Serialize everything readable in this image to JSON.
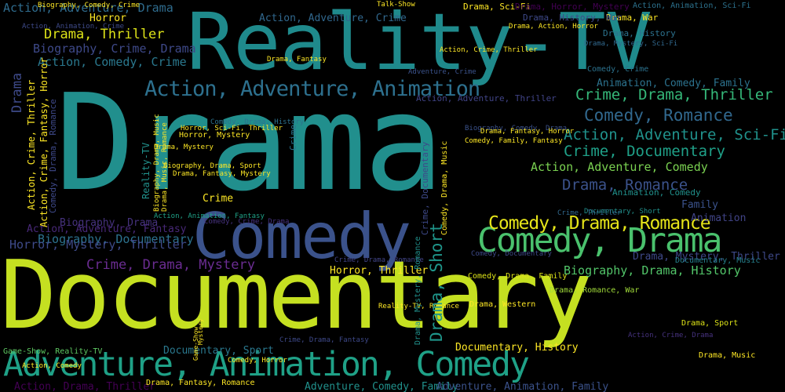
{
  "words": [
    {
      "text": "Reality-TV",
      "color": "#1f8a8c",
      "rotate": false
    },
    {
      "text": "Drama",
      "color": "#218f8d",
      "rotate": false
    },
    {
      "text": "Documentary",
      "color": "#c5e021",
      "rotate": false
    },
    {
      "text": "Comedy",
      "color": "#3b528b",
      "rotate": false
    },
    {
      "text": "Adventure, Animation, Comedy",
      "color": "#1fa187",
      "rotate": false
    },
    {
      "text": "Comedy, Drama",
      "color": "#4ac16d",
      "rotate": false
    },
    {
      "text": "Action, Adventure, Animation",
      "color": "#2d708e",
      "rotate": false
    },
    {
      "text": "Comedy, Drama, Romance",
      "color": "#e5e419",
      "rotate": false
    },
    {
      "text": "Action, Adventure, Drama",
      "color": "#2f6c8e",
      "rotate": false
    },
    {
      "text": "Drama, Thriller",
      "color": "#dde318",
      "rotate": false
    },
    {
      "text": "Biography, Crime, Drama",
      "color": "#3e4989",
      "rotate": false
    },
    {
      "text": "Action, Comedy, Crime",
      "color": "#2a788e",
      "rotate": false
    },
    {
      "text": "Crime, Drama, Thriller",
      "color": "#35b779",
      "rotate": false
    },
    {
      "text": "Comedy, Romance",
      "color": "#31688e",
      "rotate": false
    },
    {
      "text": "Action, Adventure, Sci-Fi",
      "color": "#20928c",
      "rotate": false
    },
    {
      "text": "Crime, Documentary",
      "color": "#1fa088",
      "rotate": false
    },
    {
      "text": "Action, Adventure, Comedy",
      "color": "#7ad151",
      "rotate": false
    },
    {
      "text": "Drama, Romance",
      "color": "#3b528b",
      "rotate": false
    },
    {
      "text": "Crime, Drama, Mystery",
      "color": "#6a2c91",
      "rotate": false
    },
    {
      "text": "Biography, Drama, History",
      "color": "#52c569",
      "rotate": false
    },
    {
      "text": "Biography, Documentary",
      "color": "#2c728e",
      "rotate": false
    },
    {
      "text": "Horror, Mystery, Thriller",
      "color": "#3e4a89",
      "rotate": false
    },
    {
      "text": "Action, Adventure, Fantasy",
      "color": "#482878",
      "rotate": false
    },
    {
      "text": "Biography, Drama",
      "color": "#46327e",
      "rotate": false
    },
    {
      "text": "Action, Adventure, Crime",
      "color": "#31688e",
      "rotate": false
    },
    {
      "text": "Action, Adventure, Thriller",
      "color": "#414487",
      "rotate": false
    },
    {
      "text": "Animation, Comedy, Family",
      "color": "#2c728e",
      "rotate": false
    },
    {
      "text": "Crime",
      "color": "#fde725",
      "rotate": false
    },
    {
      "text": "Horror",
      "color": "#fde725",
      "rotate": false
    },
    {
      "text": "Documentary, Sport",
      "color": "#2a788e",
      "rotate": false
    },
    {
      "text": "Documentary, History",
      "color": "#fde725",
      "rotate": false
    },
    {
      "text": "Adventure, Comedy, Family",
      "color": "#21918c",
      "rotate": false
    },
    {
      "text": "Action, Drama, Thriller",
      "color": "#440154",
      "rotate": false
    },
    {
      "text": "Drama, Fantasy, Romance",
      "color": "#fde725",
      "rotate": false
    },
    {
      "text": "Adventure, Animation, Family",
      "color": "#3b528b",
      "rotate": false
    },
    {
      "text": "Drama, Mystery, Thriller",
      "color": "#3e4989",
      "rotate": false
    },
    {
      "text": "Horror, Thriller",
      "color": "#fde725",
      "rotate": false
    },
    {
      "text": "Crime, Drama, Romance",
      "color": "#414487",
      "rotate": false
    },
    {
      "text": "Game-Show, Reality-TV",
      "color": "#5ec962",
      "rotate": false
    },
    {
      "text": "Drama, Romance, War",
      "color": "#a0da39",
      "rotate": false
    },
    {
      "text": "Drama, Sport",
      "color": "#dde318",
      "rotate": false
    },
    {
      "text": "Drama, Sci-Fi",
      "color": "#fde725",
      "rotate": false
    },
    {
      "text": "Drama, War",
      "color": "#fde725",
      "rotate": false
    },
    {
      "text": "Drama, History",
      "color": "#2c728e",
      "rotate": false
    },
    {
      "text": "Drama, History, War",
      "color": "#3e4989",
      "rotate": false
    },
    {
      "text": "Drama, Horror, Mystery",
      "color": "#440154",
      "rotate": false
    },
    {
      "text": "Action, Animation, Sci-Fi",
      "color": "#2c728e",
      "rotate": false
    },
    {
      "text": "Comedy, Crime",
      "color": "#2c728e",
      "rotate": false
    },
    {
      "text": "Comedy, Documentary",
      "color": "#3e4a89",
      "rotate": false
    },
    {
      "text": "Comedy, Drama, Family",
      "color": "#dde318",
      "rotate": false
    },
    {
      "text": "Drama, Western",
      "color": "#fde725",
      "rotate": false
    },
    {
      "text": "Animation, Comedy",
      "color": "#21918c",
      "rotate": false
    },
    {
      "text": "Documentary, Music",
      "color": "#26828e",
      "rotate": false
    },
    {
      "text": "Family",
      "color": "#3b528b",
      "rotate": false
    },
    {
      "text": "Animation",
      "color": "#414487",
      "rotate": false
    },
    {
      "text": "Action, Animation, Fantasy",
      "color": "#1fa187",
      "rotate": false
    },
    {
      "text": "Comedy, Crime, Drama",
      "color": "#46327e",
      "rotate": false
    },
    {
      "text": "Action, Crime, Drama",
      "color": "#46327e",
      "rotate": false
    },
    {
      "text": "Action, Comedy",
      "color": "#fde725",
      "rotate": false
    },
    {
      "text": "Horror, Sci-Fi, Thriller",
      "color": "#fde725",
      "rotate": false
    },
    {
      "text": "Reality-TV, Romance",
      "color": "#fde725",
      "rotate": false
    },
    {
      "text": "Crime, Drama, Fantasy",
      "color": "#3e4989",
      "rotate": false
    },
    {
      "text": "Adventure, Crime",
      "color": "#3b528b",
      "rotate": false
    },
    {
      "text": "Talk-Show",
      "color": "#fde725",
      "rotate": false
    },
    {
      "text": "Biography, Comedy, Crime",
      "color": "#fde725",
      "rotate": false
    },
    {
      "text": "Drama, Mystery",
      "color": "#fde725",
      "rotate": false
    },
    {
      "text": "Action, Animation, Crime",
      "color": "#3e4a89",
      "rotate": false
    },
    {
      "text": "Comedy, Drama, History",
      "color": "#2c728e",
      "rotate": false
    },
    {
      "text": "Biography, Comedy, Drama",
      "color": "#3b528b",
      "rotate": false
    },
    {
      "text": "Drama, Fantasy, Horror",
      "color": "#fde725",
      "rotate": false
    },
    {
      "text": "Documentary, Short",
      "color": "#21918c",
      "rotate": false
    },
    {
      "text": "Crime, Thriller",
      "color": "#31688e",
      "rotate": false
    },
    {
      "text": "Horror, Mystery",
      "color": "#fde725",
      "rotate": false
    },
    {
      "text": "Comedy, Family, Fantasy",
      "color": "#fde725",
      "rotate": false
    },
    {
      "text": "Drama, Fantasy",
      "color": "#fde725",
      "rotate": false
    },
    {
      "text": "Drama, Fantasy, Mystery",
      "color": "#fde725",
      "rotate": false
    },
    {
      "text": "Biography, Drama, Sport",
      "color": "#fde725",
      "rotate": false
    },
    {
      "text": "Drama, Music",
      "color": "#fde725",
      "rotate": false
    },
    {
      "text": "Comedy, Horror",
      "color": "#fde725",
      "rotate": false
    },
    {
      "text": "Drama, Action, Horror",
      "color": "#fde725",
      "rotate": false
    },
    {
      "text": "Action, Crime, Thriller",
      "color": "#fde725",
      "rotate": false
    },
    {
      "text": "Drama, Mystery, Sci-Fi",
      "color": "#31688e",
      "rotate": false
    },
    {
      "text": "Reality-TV",
      "color": "#21918c",
      "rotate": true
    },
    {
      "text": "Action, Crime, Fantasy, Horror",
      "color": "#fde725",
      "rotate": true
    },
    {
      "text": "Biography, Drama, Music",
      "color": "#fde725",
      "rotate": true
    },
    {
      "text": "Drama, Music, Romance",
      "color": "#fde725",
      "rotate": true
    },
    {
      "text": "Action, Crime, Thriller",
      "color": "#fde725",
      "rotate": true
    },
    {
      "text": "Comedy, Drama, Music",
      "color": "#fde725",
      "rotate": true
    },
    {
      "text": "Drama, Short",
      "color": "#1f968b",
      "rotate": true
    },
    {
      "text": "Crime, Documentary",
      "color": "#3e4989",
      "rotate": true
    },
    {
      "text": "Drama",
      "color": "#3e4a89",
      "rotate": true
    },
    {
      "text": "Comedy, Drama, Romance",
      "color": "#3e4989",
      "rotate": true
    },
    {
      "text": "Drama, Mystery, Romance",
      "color": "#21918c",
      "rotate": true
    },
    {
      "text": "Crime",
      "color": "#2c728e",
      "rotate": true
    },
    {
      "text": "Mystery",
      "color": "#fde725",
      "rotate": true
    },
    {
      "text": "Game-Show",
      "color": "#fde725",
      "rotate": true
    }
  ]
}
